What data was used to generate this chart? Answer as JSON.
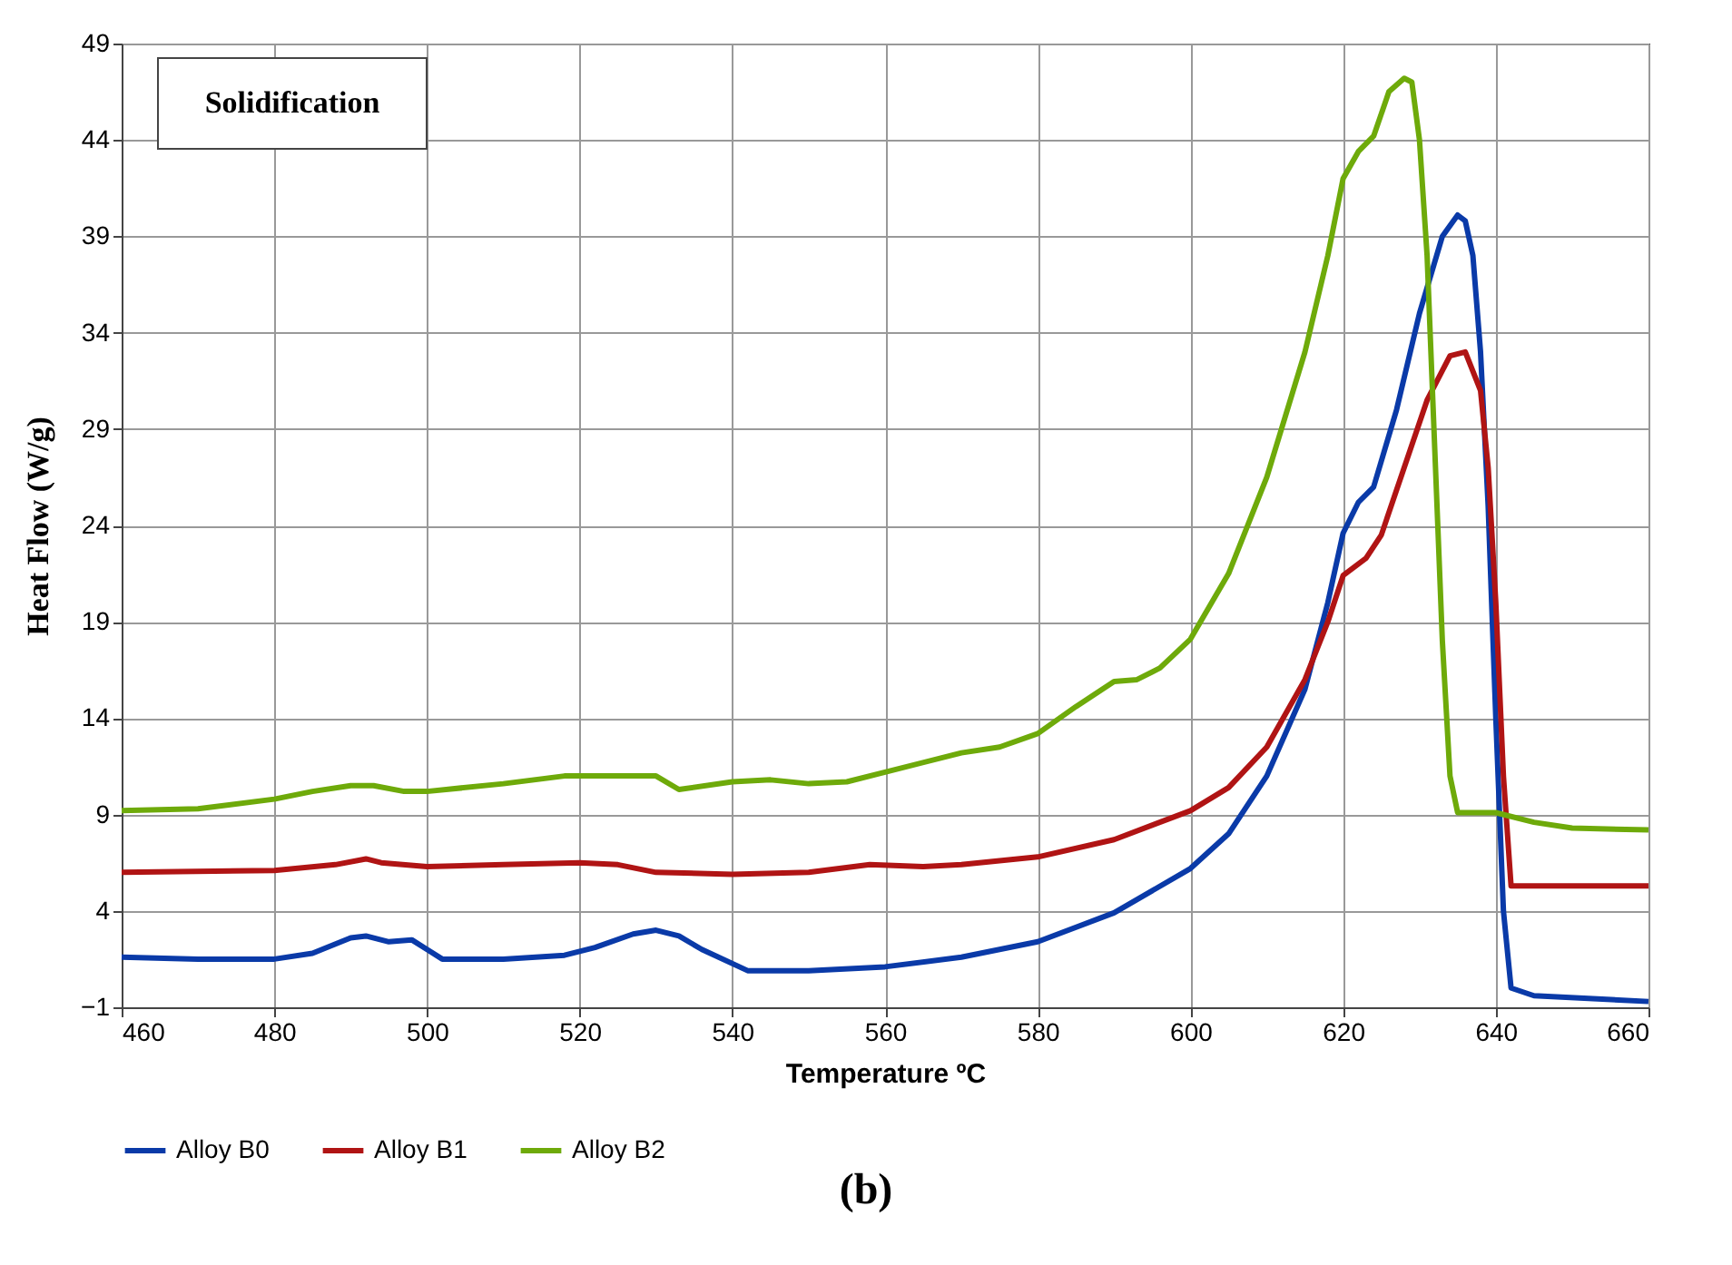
{
  "chart_data": {
    "type": "line",
    "xlabel": "Temperature  ºC",
    "ylabel": "Heat Flow (W/g)",
    "annotations": [
      "Solidification",
      "(b)"
    ],
    "xlim": [
      460,
      660
    ],
    "xticks": [
      460,
      480,
      500,
      520,
      540,
      560,
      580,
      600,
      620,
      640,
      660
    ],
    "ylim": [
      -1,
      49
    ],
    "yticks": [
      -1,
      4,
      9,
      14,
      19,
      24,
      29,
      34,
      39,
      44,
      49
    ],
    "grid": true,
    "legend": "bottom",
    "marker": "none",
    "line_style": "solid",
    "series": [
      {
        "name": "Alloy B0",
        "color": "#0a3aa8",
        "x": [
          460,
          470,
          480,
          485,
          490,
          492,
          495,
          498,
          500,
          502,
          510,
          518,
          522,
          527,
          530,
          533,
          536,
          542,
          550,
          560,
          570,
          580,
          590,
          600,
          605,
          610,
          615,
          618,
          620,
          622,
          624,
          627,
          630,
          633,
          635,
          636,
          637,
          638,
          639,
          640,
          641,
          642,
          645,
          660
        ],
        "values": [
          1.6,
          1.5,
          1.5,
          1.8,
          2.6,
          2.7,
          2.4,
          2.5,
          2.0,
          1.5,
          1.5,
          1.7,
          2.1,
          2.8,
          3.0,
          2.7,
          2.0,
          0.9,
          0.9,
          1.1,
          1.6,
          2.4,
          3.9,
          6.2,
          8.0,
          11,
          15.5,
          20,
          23.6,
          25.2,
          26,
          30,
          35,
          39,
          40.1,
          39.8,
          38,
          33,
          25,
          14,
          4,
          0.0,
          -0.4,
          -0.7
        ]
      },
      {
        "name": "Alloy B1",
        "color": "#b01414",
        "x": [
          460,
          480,
          488,
          492,
          494,
          500,
          510,
          520,
          525,
          530,
          540,
          550,
          558,
          565,
          570,
          580,
          590,
          600,
          605,
          610,
          615,
          618,
          620,
          623,
          625,
          628,
          631,
          634,
          636,
          638,
          639,
          640,
          641,
          642,
          650,
          660
        ],
        "values": [
          6.0,
          6.1,
          6.4,
          6.7,
          6.5,
          6.3,
          6.4,
          6.5,
          6.4,
          6.0,
          5.9,
          6.0,
          6.4,
          6.3,
          6.4,
          6.8,
          7.7,
          9.2,
          10.4,
          12.5,
          16,
          19,
          21.4,
          22.3,
          23.5,
          27,
          30.5,
          32.8,
          33.0,
          31,
          27,
          20,
          11,
          5.3,
          5.3,
          5.3
        ]
      },
      {
        "name": "Alloy B2",
        "color": "#6eaa0a",
        "x": [
          460,
          470,
          480,
          485,
          490,
          493,
          497,
          500,
          510,
          518,
          525,
          530,
          533,
          540,
          545,
          550,
          555,
          560,
          570,
          575,
          580,
          585,
          590,
          593,
          596,
          600,
          605,
          610,
          615,
          618,
          620,
          622,
          624,
          626,
          628,
          629,
          630,
          631,
          632,
          633,
          634,
          635,
          640,
          645,
          650,
          660
        ],
        "values": [
          9.2,
          9.3,
          9.8,
          10.2,
          10.5,
          10.5,
          10.2,
          10.2,
          10.6,
          11.0,
          11.0,
          11.0,
          10.3,
          10.7,
          10.8,
          10.6,
          10.7,
          11.2,
          12.2,
          12.5,
          13.2,
          14.6,
          15.9,
          16.0,
          16.6,
          18.1,
          21.5,
          26.5,
          33,
          38,
          42,
          43.4,
          44.2,
          46.5,
          47.2,
          47,
          44,
          38,
          28,
          18,
          11,
          9.1,
          9.1,
          8.6,
          8.3,
          8.2
        ]
      }
    ]
  }
}
